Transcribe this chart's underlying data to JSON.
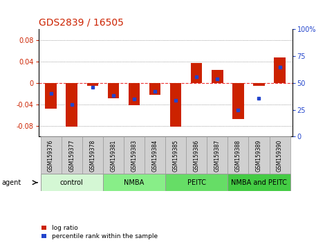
{
  "title": "GDS2839 / 16505",
  "samples": [
    "GSM159376",
    "GSM159377",
    "GSM159378",
    "GSM159381",
    "GSM159383",
    "GSM159384",
    "GSM159385",
    "GSM159386",
    "GSM159387",
    "GSM159388",
    "GSM159389",
    "GSM159390"
  ],
  "log_ratios": [
    -0.048,
    -0.082,
    -0.005,
    -0.028,
    -0.042,
    -0.022,
    -0.082,
    0.037,
    0.024,
    -0.068,
    -0.005,
    0.048
  ],
  "percentile_ranks": [
    40,
    30,
    46,
    38,
    35,
    42,
    34,
    56,
    54,
    25,
    36,
    65
  ],
  "groups": [
    {
      "label": "control",
      "start": 0,
      "end": 3,
      "color": "#d4f7d4"
    },
    {
      "label": "NMBA",
      "start": 3,
      "end": 6,
      "color": "#88ee88"
    },
    {
      "label": "PEITC",
      "start": 6,
      "end": 9,
      "color": "#66dd66"
    },
    {
      "label": "NMBA and PEITC",
      "start": 9,
      "end": 12,
      "color": "#44cc44"
    }
  ],
  "bar_color": "#cc2200",
  "marker_color": "#2244cc",
  "ylim_left": [
    -0.1,
    0.1
  ],
  "ylim_right": [
    0,
    100
  ],
  "yticks_left": [
    -0.08,
    -0.04,
    0.0,
    0.04,
    0.08
  ],
  "yticks_right": [
    0,
    25,
    50,
    75,
    100
  ],
  "zero_line_color": "#ee3333",
  "grid_color": "#666666",
  "bg_color": "#ffffff",
  "plot_bg": "#ffffff",
  "title_fontsize": 10,
  "tick_fontsize": 7,
  "sample_fontsize": 5.5,
  "group_fontsize": 7,
  "legend_fontsize": 6.5,
  "bar_width": 0.55,
  "agent_label": "agent"
}
